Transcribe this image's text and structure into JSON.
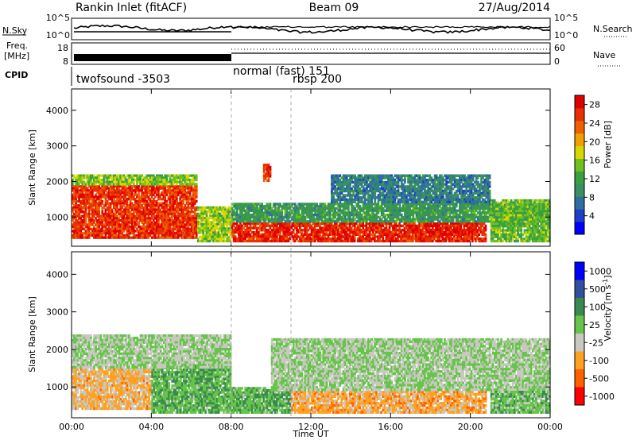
{
  "header": {
    "station": "Rankin Inlet (fitACF)",
    "beam": "Beam 09",
    "date": "27/Aug/2014"
  },
  "sky_panel": {
    "left_label": "N.Sky",
    "right_label": "N.Search",
    "left_ticks": [
      "10^5",
      "10^0"
    ],
    "right_ticks": [
      "10^5",
      "10^0"
    ]
  },
  "freq_panel": {
    "left_label_line1": "Freq.",
    "left_label_line2": "[MHz]",
    "right_label": "Nave",
    "left_ticks": [
      "18",
      "8"
    ],
    "right_ticks": [
      "60",
      "0"
    ]
  },
  "cpid": {
    "label": "CPID",
    "entries": [
      {
        "text": "twofsound -3503",
        "start_hour": 0
      },
      {
        "text": "normal (fast) 151",
        "start_hour": 8
      },
      {
        "text": "rbsp 200",
        "start_hour": 11
      }
    ]
  },
  "colors": {
    "power": [
      "#0000ff",
      "#1e40c8",
      "#2e6fa0",
      "#3a9060",
      "#38a040",
      "#70c020",
      "#d8d800",
      "#f0a000",
      "#f06000",
      "#e83000",
      "#e00000"
    ],
    "velocity": [
      "#ff0000",
      "#ff6000",
      "#ffa020",
      "#c8c8c0",
      "#66c44a",
      "#3a8a50",
      "#3050a0",
      "#0000ff"
    ]
  },
  "chart_data": [
    {
      "type": "heatmap",
      "name": "power",
      "ylabel": "Slant Range [km]",
      "xlabel": "",
      "xlim": [
        0,
        24
      ],
      "ylim": [
        180,
        4600
      ],
      "yticks": [
        "1000",
        "2000",
        "3000",
        "4000"
      ],
      "colorbar": {
        "label": "Power [dB]",
        "ticks": [
          "4",
          "8",
          "12",
          "16",
          "20",
          "24",
          "28"
        ],
        "range": [
          0,
          30
        ]
      },
      "regions": [
        {
          "x0": 0.0,
          "x1": 6.3,
          "y0": 400,
          "y1": 1900,
          "value": 26
        },
        {
          "x0": 0.0,
          "x1": 6.3,
          "y0": 1900,
          "y1": 2200,
          "value": 15
        },
        {
          "x0": 6.3,
          "x1": 8.0,
          "y0": 300,
          "y1": 1300,
          "value": 16
        },
        {
          "x0": 8.0,
          "x1": 20.8,
          "y0": 300,
          "y1": 850,
          "value": 27
        },
        {
          "x0": 8.0,
          "x1": 24.0,
          "y0": 850,
          "y1": 1400,
          "value": 11
        },
        {
          "x0": 13.0,
          "x1": 21.0,
          "y0": 1400,
          "y1": 2200,
          "value": 8
        },
        {
          "x0": 9.6,
          "x1": 10.0,
          "y0": 2000,
          "y1": 2500,
          "value": 25
        },
        {
          "x0": 21.0,
          "x1": 24.0,
          "y0": 300,
          "y1": 1500,
          "value": 14
        }
      ]
    },
    {
      "type": "heatmap",
      "name": "velocity",
      "ylabel": "Slant Range [km]",
      "xlabel": "Time UT",
      "xlim": [
        0,
        24
      ],
      "ylim": [
        180,
        4600
      ],
      "xticks": [
        "00:00",
        "04:00",
        "08:00",
        "12:00",
        "16:00",
        "20:00",
        "00:00"
      ],
      "yticks": [
        "1000",
        "2000",
        "3000",
        "4000"
      ],
      "colorbar": {
        "label": "Velocity [m s^-1]",
        "ticks": [
          "1000",
          "500",
          "100",
          "25",
          "-25",
          "-100",
          "-500",
          "-1000"
        ],
        "range": [
          -1000,
          1000
        ]
      },
      "regions": [
        {
          "x0": 0.0,
          "x1": 4.0,
          "y0": 400,
          "y1": 1500,
          "value": -300
        },
        {
          "x0": 4.0,
          "x1": 8.0,
          "y0": 300,
          "y1": 1600,
          "value": 200
        },
        {
          "x0": 0.0,
          "x1": 8.0,
          "y0": 1500,
          "y1": 2400,
          "value": 0
        },
        {
          "x0": 8.0,
          "x1": 11.0,
          "y0": 300,
          "y1": 1000,
          "value": 200
        },
        {
          "x0": 11.0,
          "x1": 20.8,
          "y0": 300,
          "y1": 900,
          "value": -350
        },
        {
          "x0": 10.0,
          "x1": 24.0,
          "y0": 900,
          "y1": 2300,
          "value": 0
        },
        {
          "x0": 21.0,
          "x1": 24.0,
          "y0": 300,
          "y1": 900,
          "value": 150
        }
      ]
    }
  ]
}
